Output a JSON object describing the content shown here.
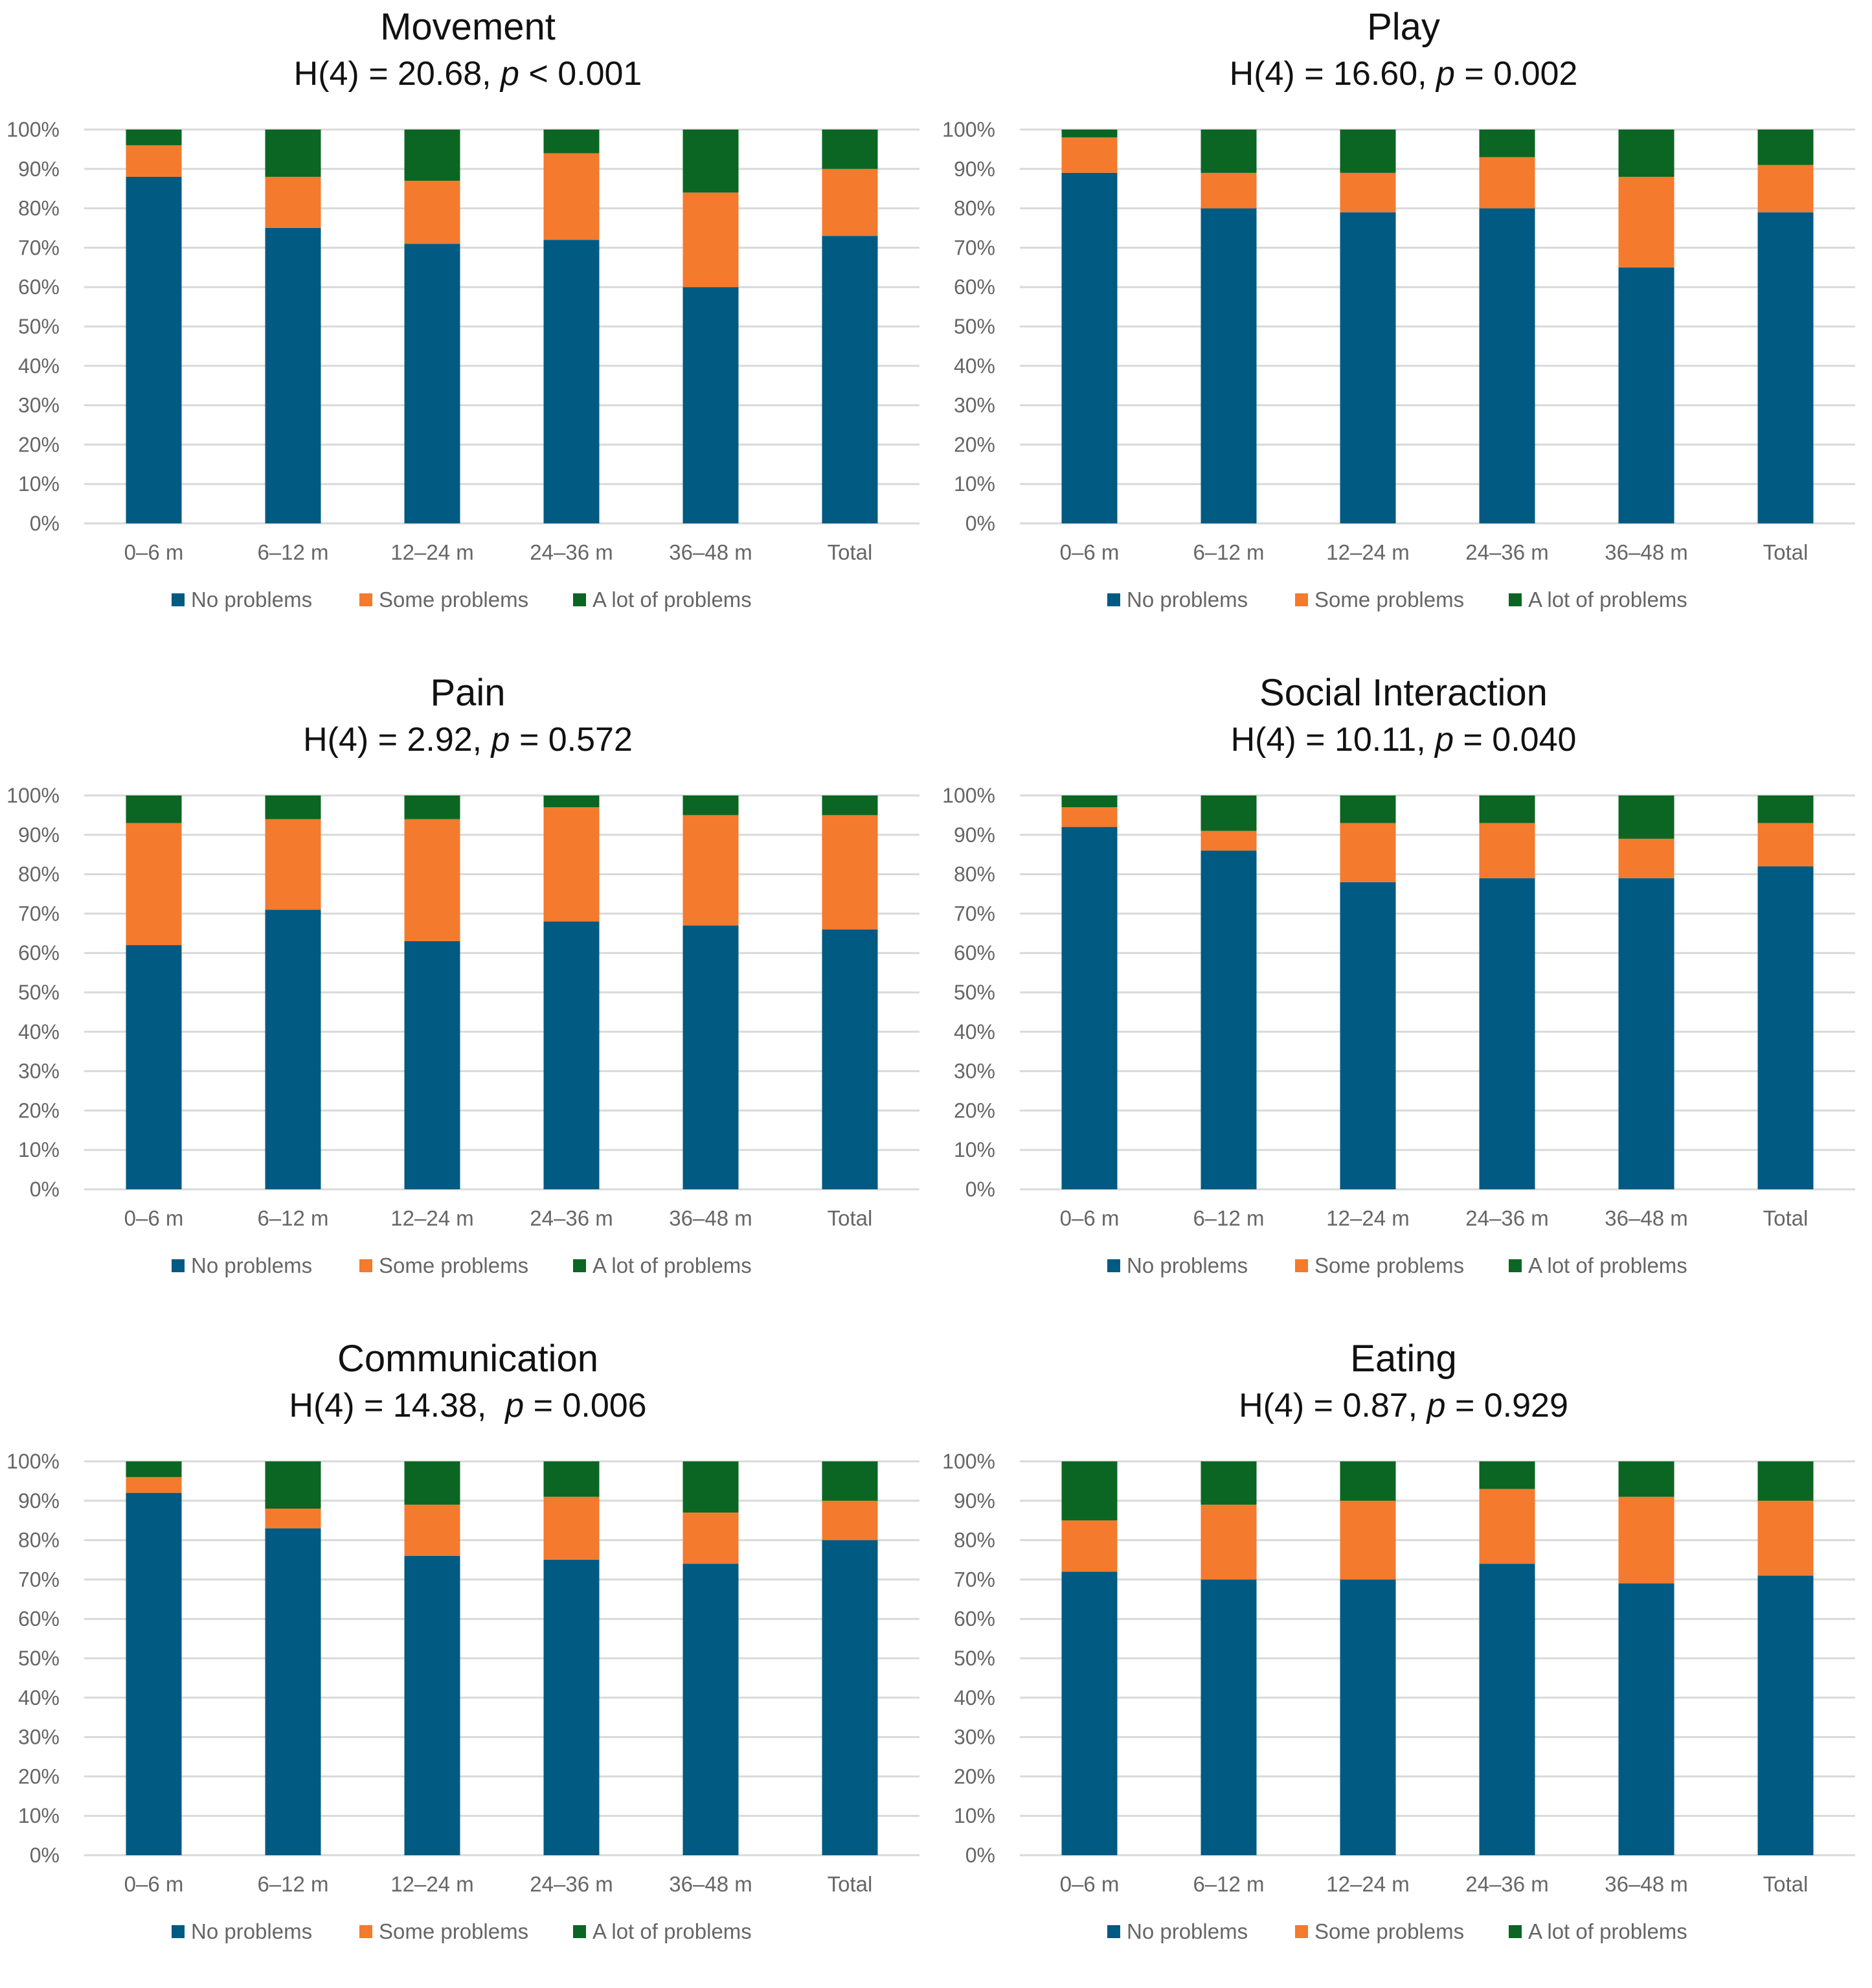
{
  "chart_data": [
    {
      "type": "bar",
      "stacked": true,
      "title": "Movement",
      "stat": {
        "pre": "H(4) = 20.68, ",
        "p": "p",
        "post": " < 0.001"
      },
      "categories": [
        "0–6 m",
        "6–12 m",
        "12–24 m",
        "24–36 m",
        "36–48 m",
        "Total"
      ],
      "series": [
        {
          "name": "No problems",
          "values": [
            88,
            75,
            71,
            72,
            60,
            73
          ]
        },
        {
          "name": "Some problems",
          "values": [
            8,
            13,
            16,
            22,
            24,
            17
          ]
        },
        {
          "name": "A lot of problems",
          "values": [
            4,
            12,
            13,
            6,
            16,
            10
          ]
        }
      ],
      "ylim": [
        0,
        100
      ],
      "yticks": [
        "0%",
        "10%",
        "20%",
        "30%",
        "40%",
        "50%",
        "60%",
        "70%",
        "80%",
        "90%",
        "100%"
      ],
      "legend": "bottom",
      "grid": true
    },
    {
      "type": "bar",
      "stacked": true,
      "title": "Play",
      "stat": {
        "pre": "H(4) = 16.60, ",
        "p": "p",
        "post": " = 0.002"
      },
      "categories": [
        "0–6 m",
        "6–12 m",
        "12–24 m",
        "24–36 m",
        "36–48 m",
        "Total"
      ],
      "series": [
        {
          "name": "No problems",
          "values": [
            89,
            80,
            79,
            80,
            65,
            79
          ]
        },
        {
          "name": "Some problems",
          "values": [
            9,
            9,
            10,
            13,
            23,
            12
          ]
        },
        {
          "name": "A lot of problems",
          "values": [
            2,
            11,
            11,
            7,
            12,
            9
          ]
        }
      ],
      "ylim": [
        0,
        100
      ],
      "yticks": [
        "0%",
        "10%",
        "20%",
        "30%",
        "40%",
        "50%",
        "60%",
        "70%",
        "80%",
        "90%",
        "100%"
      ],
      "legend": "bottom",
      "grid": true
    },
    {
      "type": "bar",
      "stacked": true,
      "title": "Pain",
      "stat": {
        "pre": "H(4) = 2.92, ",
        "p": "p",
        "post": " = 0.572"
      },
      "categories": [
        "0–6 m",
        "6–12 m",
        "12–24 m",
        "24–36 m",
        "36–48 m",
        "Total"
      ],
      "series": [
        {
          "name": "No problems",
          "values": [
            62,
            71,
            63,
            68,
            67,
            66
          ]
        },
        {
          "name": "Some problems",
          "values": [
            31,
            23,
            31,
            29,
            28,
            29
          ]
        },
        {
          "name": "A lot of problems",
          "values": [
            7,
            6,
            6,
            3,
            5,
            5
          ]
        }
      ],
      "ylim": [
        0,
        100
      ],
      "yticks": [
        "0%",
        "10%",
        "20%",
        "30%",
        "40%",
        "50%",
        "60%",
        "70%",
        "80%",
        "90%",
        "100%"
      ],
      "legend": "bottom",
      "grid": true
    },
    {
      "type": "bar",
      "stacked": true,
      "title": "Social Interaction",
      "stat": {
        "pre": "H(4) = 10.11, ",
        "p": "p",
        "post": " = 0.040"
      },
      "categories": [
        "0–6 m",
        "6–12 m",
        "12–24 m",
        "24–36 m",
        "36–48 m",
        "Total"
      ],
      "series": [
        {
          "name": "No problems",
          "values": [
            92,
            86,
            78,
            79,
            79,
            82
          ]
        },
        {
          "name": "Some problems",
          "values": [
            5,
            5,
            15,
            14,
            10,
            11
          ]
        },
        {
          "name": "A lot of problems",
          "values": [
            3,
            9,
            7,
            7,
            11,
            7
          ]
        }
      ],
      "ylim": [
        0,
        100
      ],
      "yticks": [
        "0%",
        "10%",
        "20%",
        "30%",
        "40%",
        "50%",
        "60%",
        "70%",
        "80%",
        "90%",
        "100%"
      ],
      "legend": "bottom",
      "grid": true
    },
    {
      "type": "bar",
      "stacked": true,
      "title": "Communication",
      "stat": {
        "pre": "H(4) = 14.38,  ",
        "p": "p",
        "post": " = 0.006"
      },
      "categories": [
        "0–6 m",
        "6–12 m",
        "12–24 m",
        "24–36 m",
        "36–48 m",
        "Total"
      ],
      "series": [
        {
          "name": "No problems",
          "values": [
            92,
            83,
            76,
            75,
            74,
            80
          ]
        },
        {
          "name": "Some problems",
          "values": [
            4,
            5,
            13,
            16,
            13,
            10
          ]
        },
        {
          "name": "A lot of problems",
          "values": [
            4,
            12,
            11,
            9,
            13,
            10
          ]
        }
      ],
      "ylim": [
        0,
        100
      ],
      "yticks": [
        "0%",
        "10%",
        "20%",
        "30%",
        "40%",
        "50%",
        "60%",
        "70%",
        "80%",
        "90%",
        "100%"
      ],
      "legend": "bottom",
      "grid": true
    },
    {
      "type": "bar",
      "stacked": true,
      "title": "Eating",
      "stat": {
        "pre": "H(4) = 0.87, ",
        "p": "p",
        "post": " = 0.929"
      },
      "categories": [
        "0–6 m",
        "6–12 m",
        "12–24 m",
        "24–36 m",
        "36–48 m",
        "Total"
      ],
      "series": [
        {
          "name": "No problems",
          "values": [
            72,
            70,
            70,
            74,
            69,
            71
          ]
        },
        {
          "name": "Some problems",
          "values": [
            13,
            19,
            20,
            19,
            22,
            19
          ]
        },
        {
          "name": "A lot of problems",
          "values": [
            15,
            11,
            10,
            7,
            9,
            10
          ]
        }
      ],
      "ylim": [
        0,
        100
      ],
      "yticks": [
        "0%",
        "10%",
        "20%",
        "30%",
        "40%",
        "50%",
        "60%",
        "70%",
        "80%",
        "90%",
        "100%"
      ],
      "legend": "bottom",
      "grid": true
    }
  ],
  "colors": [
    "#005a82",
    "#f47a2e",
    "#0b6623"
  ]
}
